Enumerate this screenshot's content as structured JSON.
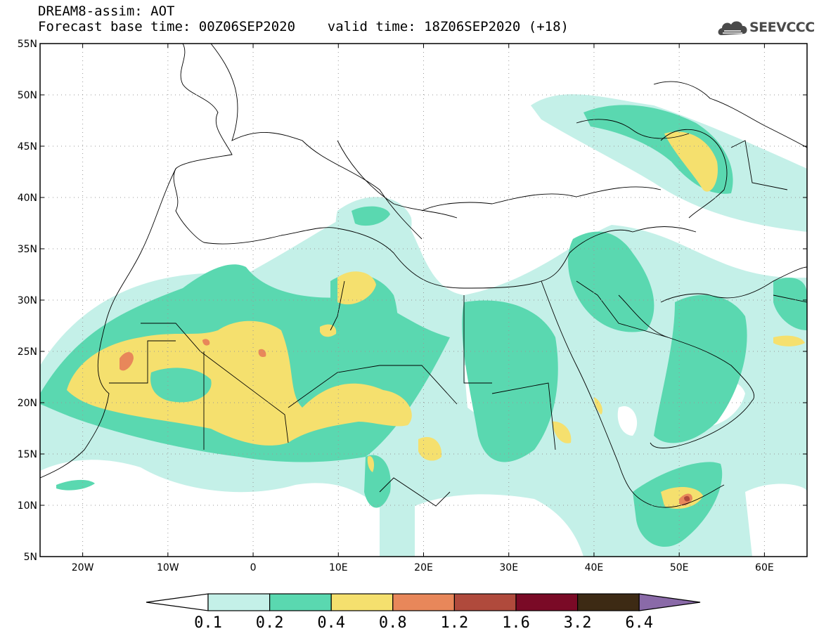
{
  "header": {
    "title_line1": "DREAM8-assim: AOT",
    "title_line2": "Forecast base time: 00Z06SEP2020    valid time: 18Z06SEP2020 (+18)"
  },
  "logo": {
    "text": "SEEVCCC",
    "icon": "cloud-icon",
    "color": "#4a4a4a"
  },
  "map": {
    "lat_ticks": [
      "55N",
      "50N",
      "45N",
      "40N",
      "35N",
      "30N",
      "25N",
      "20N",
      "15N",
      "10N",
      "5N"
    ],
    "lon_ticks": [
      "20W",
      "10W",
      "0",
      "10E",
      "20E",
      "30E",
      "40E",
      "50E",
      "60E"
    ],
    "lon_range": [
      -25,
      65
    ],
    "lat_range": [
      5,
      55
    ],
    "grid": "dotted"
  },
  "colorbar": {
    "labels": [
      "0.1",
      "0.2",
      "0.4",
      "0.8",
      "1.2",
      "1.6",
      "3.2",
      "6.4"
    ],
    "colors": [
      "#ffffff",
      "#c4f0e8",
      "#5ad8b0",
      "#f5e06e",
      "#e8875a",
      "#b04a3c",
      "#7a0a26",
      "#3d2a14",
      "#8a6aa8"
    ]
  }
}
